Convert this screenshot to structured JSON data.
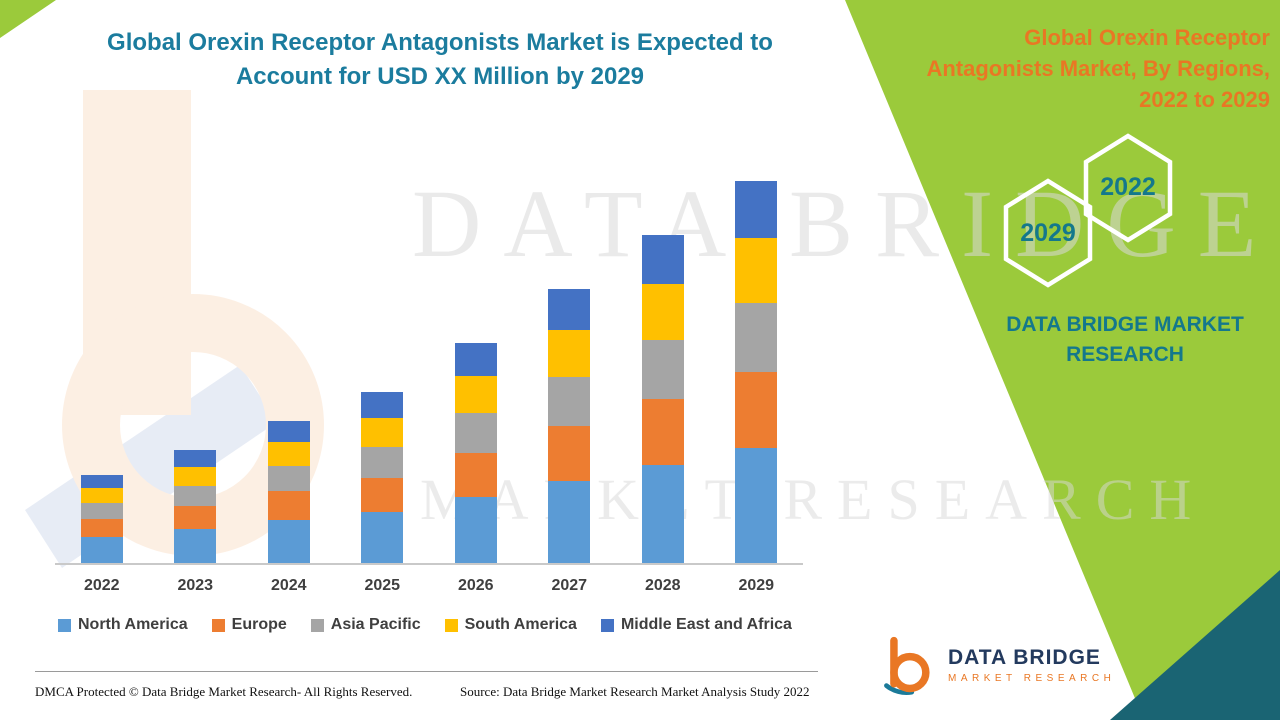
{
  "header": {
    "line1": "Global Orexin Receptor Antagonists Market is Expected to",
    "line2": "Account for USD XX Million by 2029"
  },
  "right_panel": {
    "title_lines": [
      "Global Orexin Receptor",
      "Antagonists Market, By Regions,",
      "2022 to 2029"
    ],
    "hexagon_years": {
      "back": "2022",
      "front": "2029"
    },
    "brand_lines": [
      "DATA BRIDGE MARKET",
      "RESEARCH"
    ],
    "background_color": "#9BCA3B",
    "accent_orange": "#E97724",
    "teal": "#14788C"
  },
  "watermark": {
    "line1": "DATA BRIDGE",
    "line2": "MARKET RESEARCH"
  },
  "chart_data": {
    "type": "bar",
    "stacked": true,
    "title": "Global Orexin Receptor Antagonists Market is Expected to Account for USD XX Million by 2029",
    "categories": [
      "2022",
      "2023",
      "2024",
      "2025",
      "2026",
      "2027",
      "2028",
      "2029"
    ],
    "series": [
      {
        "name": "North America",
        "color": "#5B9BD5",
        "values": [
          2.6,
          3.4,
          4.3,
          5.1,
          6.6,
          8.2,
          9.8,
          11.5
        ]
      },
      {
        "name": "Europe",
        "color": "#ED7D31",
        "values": [
          1.8,
          2.3,
          2.9,
          3.4,
          4.4,
          5.5,
          6.6,
          7.6
        ]
      },
      {
        "name": "Asia Pacific",
        "color": "#A5A5A5",
        "values": [
          1.6,
          2.0,
          2.5,
          3.1,
          4.0,
          4.9,
          5.9,
          6.9
        ]
      },
      {
        "name": "South America",
        "color": "#FFC000",
        "values": [
          1.5,
          1.9,
          2.4,
          2.9,
          3.7,
          4.7,
          5.6,
          6.5
        ]
      },
      {
        "name": "Middle East and Africa",
        "color": "#4472C4",
        "values": [
          1.3,
          1.7,
          2.1,
          2.6,
          3.3,
          4.1,
          4.9,
          5.7
        ]
      }
    ],
    "xlabel": "",
    "ylabel": "",
    "ylim": [
      0,
      43
    ],
    "grid": false,
    "legend_position": "bottom",
    "note": "No numeric axis or data labels shown in chart; values are approximate relative estimates (USD XX Million not disclosed)."
  },
  "footer": {
    "dmca": "DMCA Protected © Data Bridge Market Research- All Rights Reserved.",
    "source": "Source: Data Bridge Market Research Market Analysis Study 2022"
  },
  "logo": {
    "name": "DATA BRIDGE",
    "subtitle": "MARKET RESEARCH"
  }
}
